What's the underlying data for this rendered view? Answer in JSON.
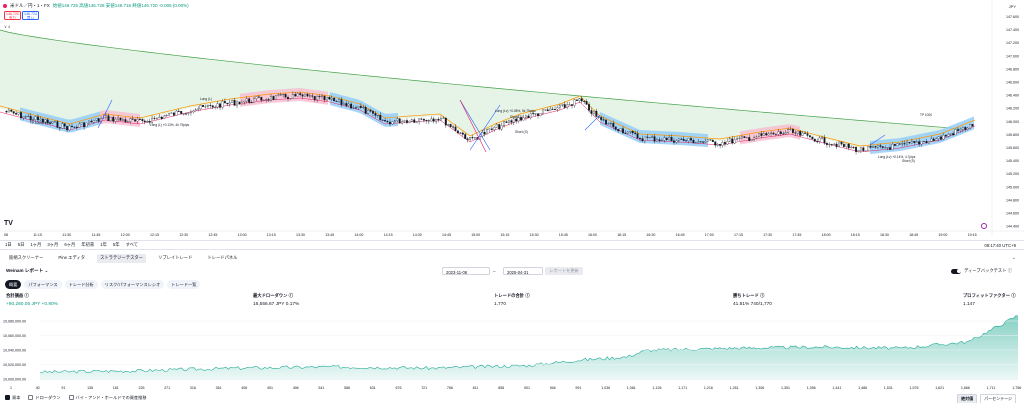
{
  "chart": {
    "symbol_title": "米ドル／円・1・FX",
    "ohlc_text": "始値146.725 高値146.728 安値146.716 終値146.720 -0.005 (0.00%)",
    "sell_price": "146.720",
    "sell_label": "売り",
    "buy_price": "146.724",
    "buy_label": "買い",
    "indicator_toggle": "∨ 4",
    "currency": "JPY",
    "price_axis": [
      "147.600",
      "147.400",
      "147.200",
      "147.000",
      "146.800",
      "146.600",
      "146.400",
      "146.200",
      "146.000",
      "145.800",
      "145.600",
      "145.400",
      "145.200",
      "145.000",
      "144.800",
      "144.600",
      "144.400"
    ],
    "time_axis": [
      "08",
      "11:15",
      "11:30",
      "11:45",
      "12:00",
      "12:15",
      "12:30",
      "12:45",
      "13:00",
      "13:15",
      "13:30",
      "13:45",
      "14:00",
      "14:15",
      "14:30",
      "14:45",
      "15:00",
      "15:15",
      "15:30",
      "15:45",
      "16:00",
      "16:15",
      "16:30",
      "16:45",
      "17:00",
      "17:15",
      "17:30",
      "17:45",
      "18:00",
      "18:15",
      "18:30",
      "18:45",
      "19:00",
      "19:15"
    ],
    "annotations": [
      "TP 1000 +7000",
      "Long (L) +0.13%, 4k 79pips",
      "Long (L)",
      "Short (S)",
      "Long (Lv) +0.08%, 5k 79pips",
      "Short (S)",
      "Long (Lv) +0.14%, 4.7pips",
      "Short (S)",
      "TP 1000"
    ],
    "logo": "TV",
    "colors": {
      "up": "#ffffff",
      "down": "#131722",
      "band_green": "#c8e6c9",
      "band_blue": "#90caf9",
      "band_red": "#f8bbd0",
      "long_line": "#43a047",
      "short_line": "#ff9800"
    }
  },
  "timeframes": [
    "1日",
    "5日",
    "1ヶ月",
    "3ヶ月",
    "6ヶ月",
    "年初来",
    "1年",
    "5年",
    "すべて"
  ],
  "timeframe_right": "09:17:40 UTC+9",
  "panel": {
    "tabs": [
      "銘柄スクリーナー",
      "Pine エディタ",
      "ストラテジーテスター",
      "リプレイトレード",
      "トレードパネル"
    ],
    "active_tab": "ストラテジーテスター",
    "collapse_icon": "⌄"
  },
  "report": {
    "title": "Weinam レポート ⌄",
    "date_from": "2023-11-06",
    "date_to": "2025-04-31",
    "run_label": "レポートを更新",
    "deep_backtest_label": "ディープバックテスト ⓘ"
  },
  "subtabs": [
    "概要",
    "パフォーマンス",
    "トレード分析",
    "リスク/パフォーマンスレシオ",
    "トレード一覧"
  ],
  "metrics": [
    {
      "label": "合計損益 ⓘ",
      "value": "+90,280.05 JPY +0.90%",
      "positive": true
    },
    {
      "label": "最大ドローダウン ⓘ",
      "value": "16,556.67 JPY 0.17%",
      "positive": false
    },
    {
      "label": "トレードの合計 ⓘ",
      "value": "1,770",
      "positive": false
    },
    {
      "label": "勝ちトレード ⓘ",
      "value": "41.81% 740/1,770",
      "positive": false
    },
    {
      "label": "プロフィットファクター ⓘ",
      "value": "1.147",
      "positive": false
    }
  ],
  "equity": {
    "y_axis": [
      "10,080,000.00",
      "10,060,000.00",
      "10,040,000.00",
      "10,020,000.00",
      "10,000,000.00"
    ],
    "x_axis": [
      "1",
      "40",
      "91",
      "136",
      "181",
      "226",
      "271",
      "316",
      "361",
      "406",
      "451",
      "496",
      "541",
      "586",
      "631",
      "676",
      "721",
      "766",
      "811",
      "856",
      "901",
      "946",
      "991",
      "1,036",
      "1,081",
      "1,126",
      "1,171",
      "1,216",
      "1,261",
      "1,306",
      "1,351",
      "1,396",
      "1,441",
      "1,486",
      "1,531",
      "1,576",
      "1,621",
      "1,666",
      "1,711",
      "1,756"
    ],
    "color": "#22ab94"
  },
  "bottom": {
    "checks": [
      {
        "label": "資本",
        "on": true
      },
      {
        "label": "ドローダウン",
        "on": false
      },
      {
        "label": "バイ・アンド・ホールドでの資産推移",
        "on": false
      }
    ],
    "mode_abs": "絶対値",
    "mode_pct": "パーセンテージ"
  }
}
